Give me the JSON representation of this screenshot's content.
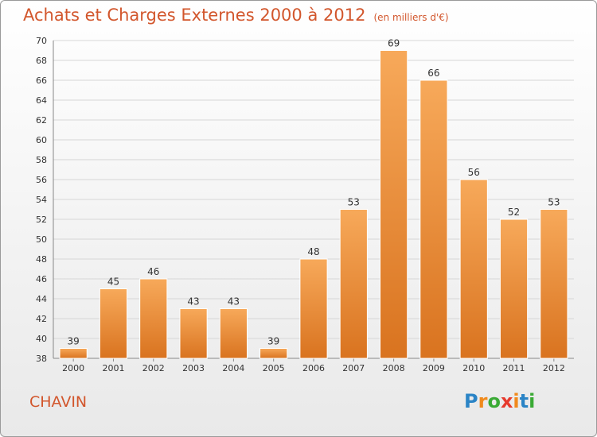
{
  "title": {
    "main": "Achats et Charges Externes 2000 à 2012",
    "unit": "(en milliers d'€)"
  },
  "commune": "CHAVIN",
  "logo": {
    "letters": [
      "P",
      "r",
      "o",
      "x",
      "i",
      "t",
      "i"
    ],
    "colors": [
      "#2b84c6",
      "#f08a1c",
      "#3aaa35",
      "#e63a2e",
      "#f08a1c",
      "#2b84c6",
      "#3aaa35"
    ]
  },
  "chart_data": {
    "type": "bar",
    "title": "Achats et Charges Externes 2000 à 2012",
    "categories": [
      "2000",
      "2001",
      "2002",
      "2003",
      "2004",
      "2005",
      "2006",
      "2007",
      "2008",
      "2009",
      "2010",
      "2011",
      "2012"
    ],
    "values": [
      39,
      45,
      46,
      43,
      43,
      39,
      48,
      53,
      69,
      66,
      56,
      52,
      53
    ],
    "data_labels": [
      "39",
      "45",
      "46",
      "43",
      "43",
      "39",
      "48",
      "53",
      "69",
      "66",
      "56",
      "52",
      "53"
    ],
    "ylim": [
      38,
      70
    ],
    "yticks": [
      "38",
      "40",
      "42",
      "44",
      "46",
      "48",
      "50",
      "52",
      "54",
      "56",
      "58",
      "60",
      "62",
      "64",
      "66",
      "68",
      "70"
    ],
    "grid": true,
    "bar_color": "#f0a050"
  }
}
